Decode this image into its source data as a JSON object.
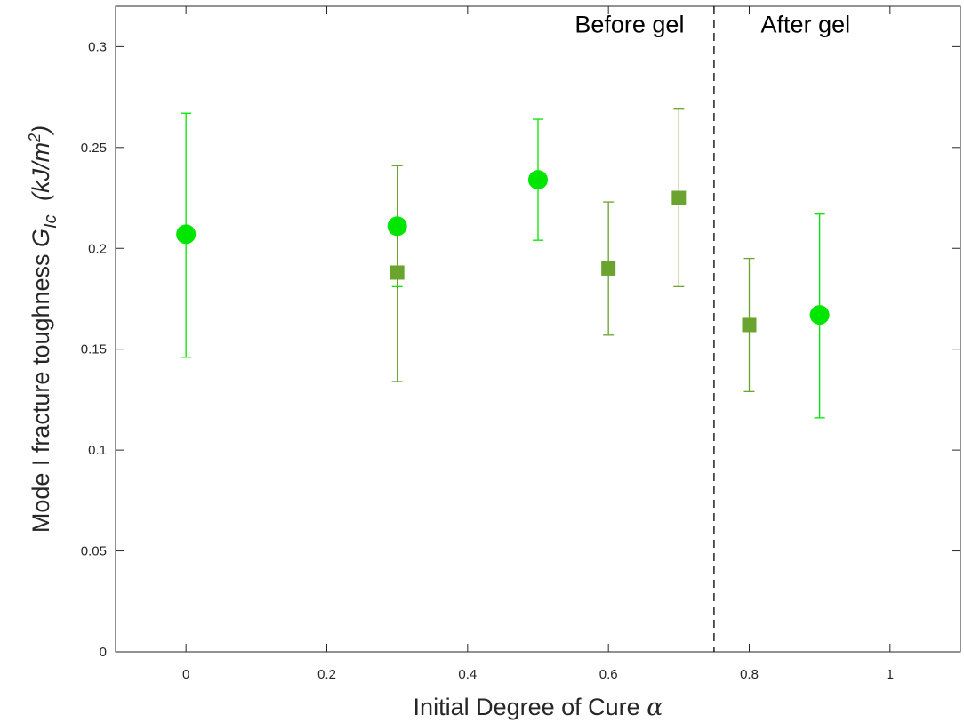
{
  "chart_data": {
    "type": "scatter",
    "xlabel": "Initial Degree of Cure",
    "xlabel_symbol": "α",
    "ylabel": "Mode I fracture toughness",
    "ylabel_symbol": "G",
    "ylabel_subscript": "Ic",
    "ylabel_units": "(kJ/m",
    "ylabel_units_sup": "2",
    "ylabel_units_close": ")",
    "xlim": [
      -0.1,
      1.1
    ],
    "ylim": [
      0,
      0.32
    ],
    "xticks": [
      0,
      0.2,
      0.4,
      0.6,
      0.8,
      1
    ],
    "xtick_labels": [
      "0",
      "0.2",
      "0.4",
      "0.6",
      "0.8",
      "1"
    ],
    "yticks": [
      0,
      0.05,
      0.1,
      0.15,
      0.2,
      0.25,
      0.3
    ],
    "ytick_labels": [
      "0",
      "0.05",
      "0.1",
      "0.15",
      "0.2",
      "0.25",
      "0.3"
    ],
    "grid": false,
    "gel_line_x": 0.75,
    "annotations": [
      {
        "text": "Before gel",
        "x": 0.63,
        "y": 0.307
      },
      {
        "text": "After gel",
        "x": 0.88,
        "y": 0.307
      }
    ],
    "series": [
      {
        "marker": "circle",
        "color": "#00e600",
        "points": [
          {
            "x": 0.0,
            "y": 0.207,
            "low": 0.146,
            "high": 0.267
          },
          {
            "x": 0.3,
            "y": 0.211,
            "low": 0.181,
            "high": 0.241
          },
          {
            "x": 0.5,
            "y": 0.234,
            "low": 0.204,
            "high": 0.264
          },
          {
            "x": 0.9,
            "y": 0.167,
            "low": 0.116,
            "high": 0.217
          }
        ]
      },
      {
        "marker": "square",
        "color": "#6aa42e",
        "points": [
          {
            "x": 0.3,
            "y": 0.188,
            "low": 0.134,
            "high": 0.241
          },
          {
            "x": 0.6,
            "y": 0.19,
            "low": 0.157,
            "high": 0.223
          },
          {
            "x": 0.7,
            "y": 0.225,
            "low": 0.181,
            "high": 0.269
          },
          {
            "x": 0.8,
            "y": 0.162,
            "low": 0.129,
            "high": 0.195
          }
        ]
      }
    ]
  }
}
